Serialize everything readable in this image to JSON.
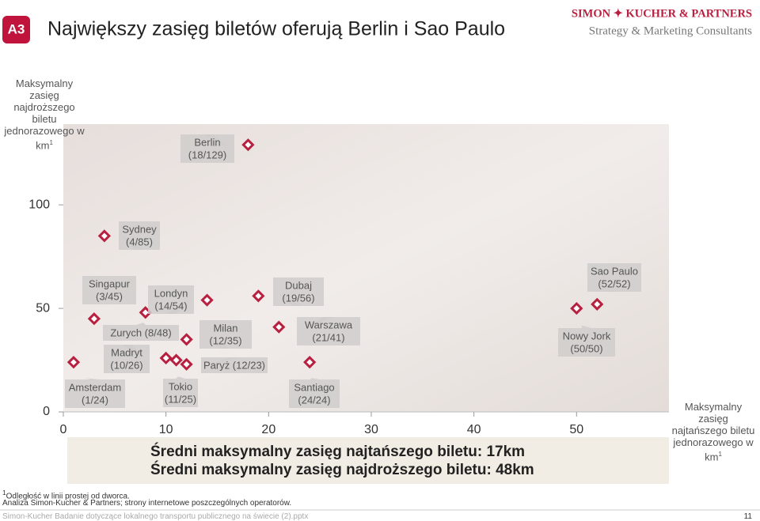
{
  "header": {
    "badge": "A3",
    "title": "Największy zasięg biletów oferują Berlin i Sao Paulo",
    "logo": "SIMON ✦ KUCHER & PARTNERS",
    "tagline": "Strategy & Marketing Consultants"
  },
  "chart_data": {
    "type": "scatter",
    "y_label": {
      "lines": [
        "Maksymalny zasięg",
        "najdroższego biletu",
        "jednorazowego w",
        "km"
      ],
      "note": "1"
    },
    "x_label": {
      "lines": [
        "Maksymalny zasięg",
        "najtańszego biletu",
        "jednorazowego w",
        "km"
      ],
      "note": "1"
    },
    "xlim": [
      0,
      59
    ],
    "ylim": [
      0,
      139
    ],
    "xticks": [
      0,
      10,
      20,
      30,
      40,
      50
    ],
    "yticks": [
      0,
      50,
      100
    ],
    "color": "#b8203f",
    "labels": [
      [
        "Amsterdam",
        "(1/24)"
      ],
      [
        "Singapur",
        "(3/45)"
      ],
      [
        "Sydney",
        "(4/85)"
      ],
      [
        "Zurych (8/48)"
      ],
      [
        "Madryt",
        "(10/26)"
      ],
      [
        "Tokio",
        "(11/25)"
      ],
      [
        "Paryż (12/23)"
      ],
      [
        "Milan",
        "(12/35)"
      ],
      [
        "Londyn",
        "(14/54)"
      ],
      [
        "Berlin",
        "(18/129)"
      ],
      [
        "Dubaj",
        "(19/56)"
      ],
      [
        "Warszawa",
        "(21/41)"
      ],
      [
        "Santiago",
        "(24/24)"
      ],
      [
        "Nowy Jork",
        "(50/50)"
      ],
      [
        "Sao Paulo",
        "(52/52)"
      ]
    ],
    "x": [
      1,
      3,
      4,
      8,
      10,
      11,
      12,
      12,
      14,
      18,
      19,
      21,
      24,
      50,
      52
    ],
    "values": [
      24,
      45,
      85,
      48,
      26,
      25,
      23,
      35,
      54,
      129,
      56,
      41,
      24,
      50,
      52
    ],
    "summary": [
      "Średni maksymalny zasięg najtańszego biletu: 17km",
      "Średni maksymalny zasięg najdroższego biletu: 48km"
    ]
  },
  "footnotes": {
    "note_mark": "1",
    "note": "Odległość w linii prostej od dworca.",
    "source": "Analiza Simon-Kucher & Partners; strony internetowe poszczególnych operatorów."
  },
  "footer": {
    "file": "Simon-Kucher Badanie dotyczące lokalnego transportu publicznego na świecie (2).pptx",
    "page": "11"
  }
}
